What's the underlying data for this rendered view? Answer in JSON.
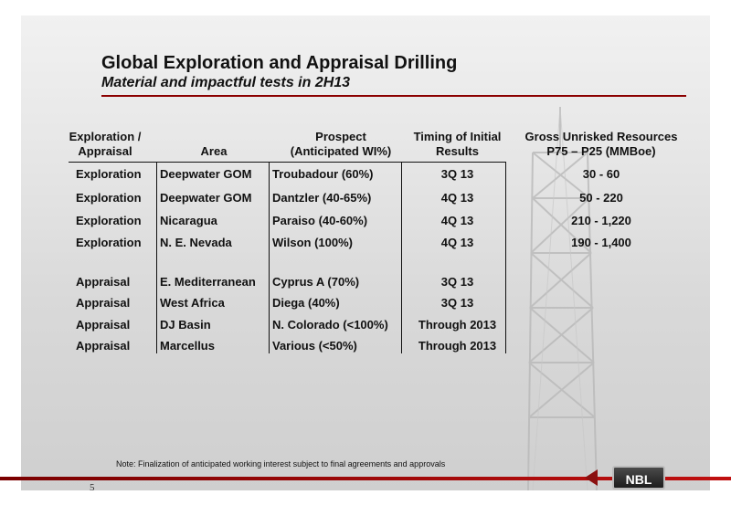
{
  "header": {
    "title": "Global Exploration and Appraisal Drilling",
    "subtitle": "Material and impactful tests in 2H13"
  },
  "table": {
    "columns": [
      {
        "line1": "Exploration /",
        "line2": "Appraisal"
      },
      {
        "line1": "",
        "line2": "Area"
      },
      {
        "line1": "Prospect",
        "line2": "(Anticipated WI%)"
      },
      {
        "line1": "Timing of Initial",
        "line2": "Results"
      },
      {
        "line1": "Gross Unrisked Resources",
        "line2": "P75 – P25 (MMBoe)"
      }
    ],
    "rows": [
      {
        "type": "Exploration",
        "area": "Deepwater GOM",
        "prospect": "Troubadour (60%)",
        "timing": "3Q 13",
        "resources": "30 - 60"
      },
      {
        "type": "Exploration",
        "area": "Deepwater GOM",
        "prospect": "Dantzler (40-65%)",
        "timing": "4Q 13",
        "resources": "50 - 220"
      },
      {
        "type": "Exploration",
        "area": "Nicaragua",
        "prospect": "Paraiso (40-60%)",
        "timing": "4Q 13",
        "resources": "210 - 1,220"
      },
      {
        "type": "Exploration",
        "area": "N. E. Nevada",
        "prospect": "Wilson (100%)",
        "timing": "4Q 13",
        "resources": "190 - 1,400"
      },
      {
        "type": "Appraisal",
        "area": "E. Mediterranean",
        "prospect": "Cyprus A (70%)",
        "timing": "3Q 13",
        "resources": ""
      },
      {
        "type": "Appraisal",
        "area": "West Africa",
        "prospect": "Diega (40%)",
        "timing": "3Q 13",
        "resources": ""
      },
      {
        "type": "Appraisal",
        "area": "DJ Basin",
        "prospect": "N. Colorado (<100%)",
        "timing": "Through 2013",
        "resources": ""
      },
      {
        "type": "Appraisal",
        "area": "Marcellus",
        "prospect": "Various (<50%)",
        "timing": "Through 2013",
        "resources": ""
      }
    ]
  },
  "footer": {
    "note": "Note: Finalization of anticipated working interest subject to final agreements and approvals",
    "page_number": "5",
    "logo_text": "NBL"
  },
  "colors": {
    "accent": "#8b0000",
    "text": "#111111"
  }
}
